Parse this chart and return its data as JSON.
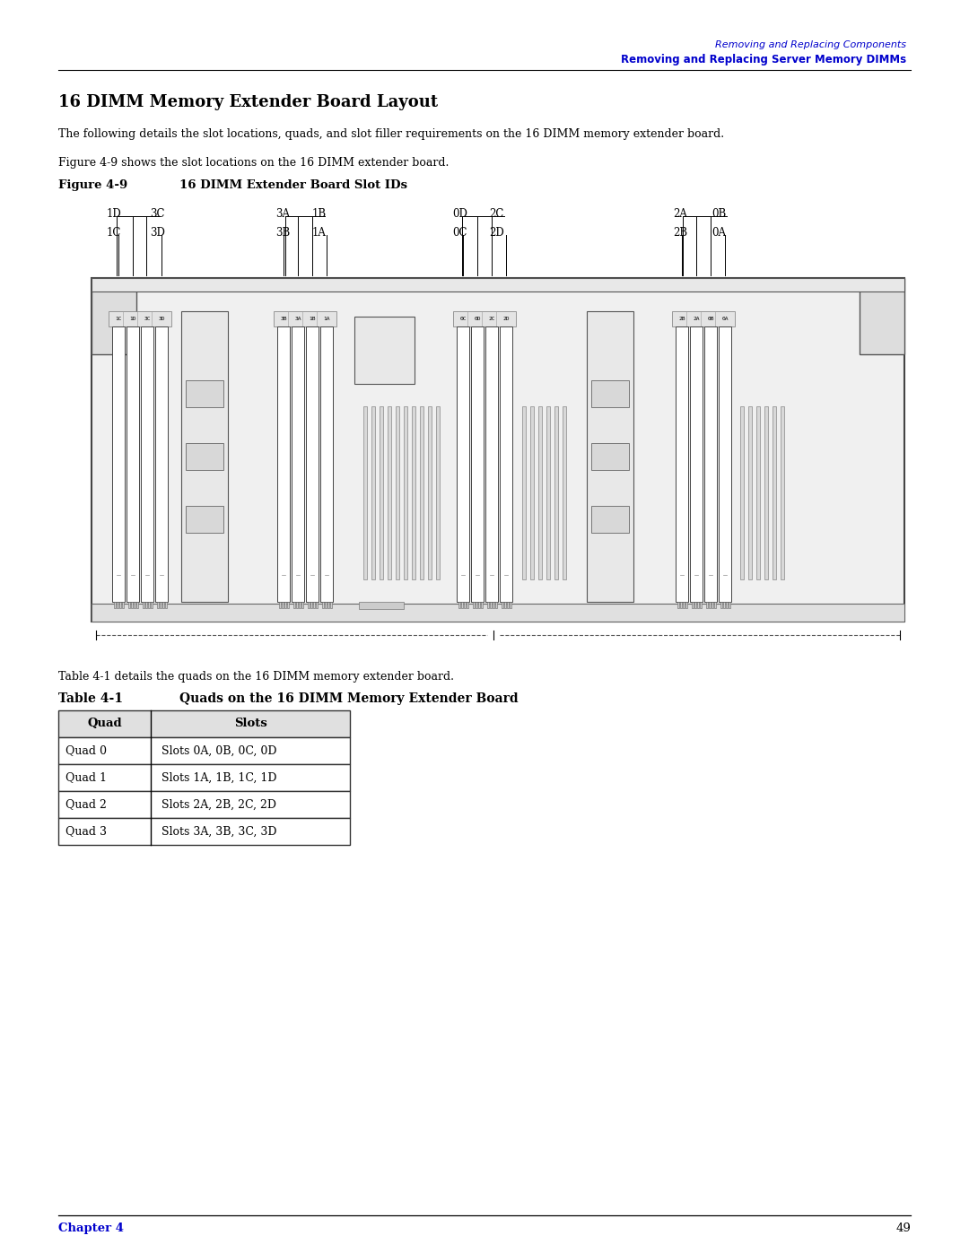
{
  "bg_color": "#ffffff",
  "page_width": 10.8,
  "page_height": 13.97,
  "header_line1": "Removing and Replacing Components",
  "header_line2": "Removing and Replacing Server Memory DIMMs",
  "header_color": "#0000cc",
  "section_title": "16 DIMM Memory Extender Board Layout",
  "body_text1": "The following details the slot locations, quads, and slot filler requirements on the 16 DIMM memory extender board.",
  "body_text2": "Figure 4-9 shows the slot locations on the 16 DIMM extender board.",
  "figure_label": "Figure 4-9",
  "figure_title": "16 DIMM Extender Board Slot IDs",
  "table_intro": "Table 4-1 details the quads on the 16 DIMM memory extender board.",
  "table_label": "Table 4-1",
  "table_title": "Quads on the 16 DIMM Memory Extender Board",
  "table_headers": [
    "Quad",
    "Slots"
  ],
  "table_rows": [
    [
      "Quad 0",
      "Slots 0A, 0B, 0C, 0D"
    ],
    [
      "Quad 1",
      "Slots 1A, 1B, 1C, 1D"
    ],
    [
      "Quad 2",
      "Slots 2A, 2B, 2C, 2D"
    ],
    [
      "Quad 3",
      "Slots 3A, 3B, 3C, 3D"
    ]
  ],
  "footer_chapter": "Chapter 4",
  "footer_page": "49",
  "footer_color": "#0000cc"
}
